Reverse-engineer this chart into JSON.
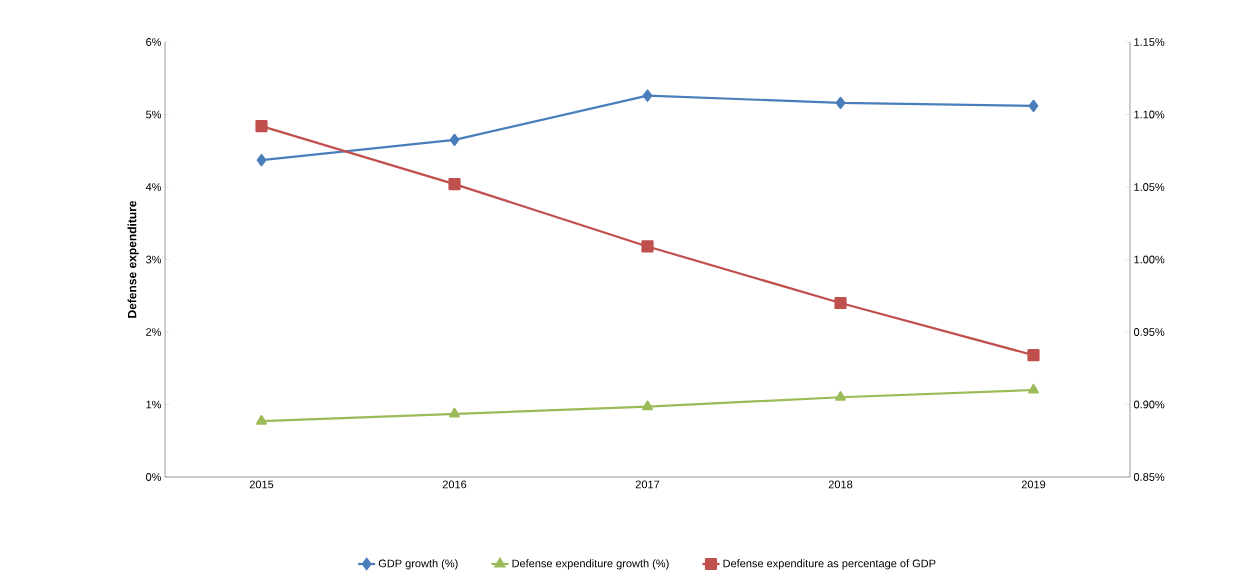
{
  "chart_data": {
    "type": "line",
    "ylabel": "Defense expenditure",
    "categories": [
      "2015",
      "2016",
      "2017",
      "2018",
      "2019"
    ],
    "series": [
      {
        "name": "GDP growth (%)",
        "color": "#4a7ebb",
        "marker": "diamond",
        "values": [
          4.37,
          4.65,
          5.26,
          5.16,
          5.12
        ]
      },
      {
        "name": "Defense expenditure growth (%)",
        "color": "#9bbb59",
        "marker": "triangle",
        "values": [
          0.77,
          0.87,
          0.97,
          1.1,
          1.2
        ]
      },
      {
        "name": "Defense expenditure as  percentage of GDP",
        "color": "#c0504d",
        "marker": "square",
        "axis": "y2",
        "values": [
          1.092,
          1.052,
          1.009,
          0.97,
          0.934
        ]
      }
    ],
    "ylim": [
      0,
      6
    ],
    "yticks": [
      {
        "value": 0,
        "label": "0%"
      },
      {
        "value": 1,
        "label": "1%"
      },
      {
        "value": 2,
        "label": "2%"
      },
      {
        "value": 3,
        "label": "3%"
      },
      {
        "value": 4,
        "label": "4%"
      },
      {
        "value": 5,
        "label": "5%"
      },
      {
        "value": 6,
        "label": "6%"
      }
    ],
    "y2lim": [
      0.85,
      1.15
    ],
    "y2ticks": [
      {
        "value": 0.85,
        "label": "0.85%"
      },
      {
        "value": 0.9,
        "label": "0.90%"
      },
      {
        "value": 0.95,
        "label": "0.95%"
      },
      {
        "value": 1.0,
        "label": "1.00%"
      },
      {
        "value": 1.05,
        "label": "1.05%"
      },
      {
        "value": 1.1,
        "label": "1.10%"
      },
      {
        "value": 1.15,
        "label": "1.15%"
      }
    ],
    "grid": false,
    "legend": "bottom",
    "line_style": "solid"
  }
}
